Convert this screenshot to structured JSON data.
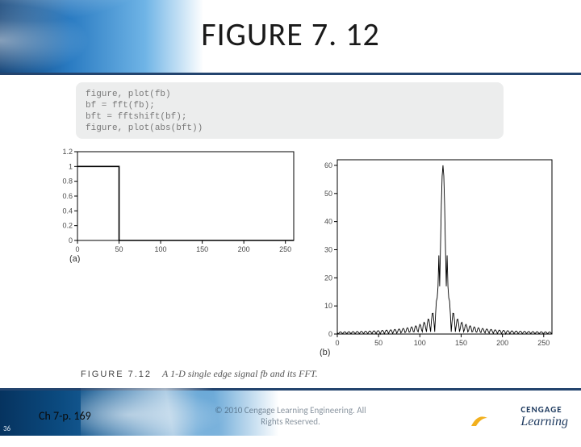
{
  "title": "FIGURE 7. 12",
  "code": {
    "lines": [
      "figure, plot(fb)",
      "bf = fft(fb);",
      "bft = fftshift(bf);",
      "figure, plot(abs(bft))"
    ],
    "bg": "#eceded",
    "text_color": "#7a7a7a",
    "font_size": 11
  },
  "chart_a": {
    "type": "line",
    "label": "(a)",
    "xlim": [
      0,
      260
    ],
    "ylim": [
      0,
      1.2
    ],
    "xticks": [
      0,
      50,
      100,
      150,
      200,
      250
    ],
    "yticks": [
      0,
      0.2,
      0.4,
      0.6,
      0.8,
      1,
      1.2
    ],
    "series": {
      "x": [
        0,
        50,
        50,
        260
      ],
      "y": [
        1,
        1,
        0,
        0
      ]
    },
    "line_color": "#000000",
    "line_width": 1.6,
    "axis_color": "#000000",
    "tick_color": "#4a4a4a",
    "tick_fontsize": 9
  },
  "chart_b": {
    "type": "line",
    "label": "(b)",
    "xlim": [
      0,
      260
    ],
    "ylim": [
      0,
      62
    ],
    "xticks": [
      0,
      50,
      100,
      150,
      200,
      250
    ],
    "yticks": [
      0,
      10,
      20,
      30,
      40,
      50,
      60
    ],
    "line_color": "#000000",
    "line_width": 0.9,
    "axis_color": "#000000",
    "tick_color": "#4a4a4a",
    "tick_fontsize": 9,
    "peak_center": 128,
    "peak_height": 60,
    "side_peak_height": 28
  },
  "caption": {
    "label": "FIGURE 7.12",
    "desc": "A 1-D single edge signal fb and its FFT."
  },
  "footer": {
    "slide_number": "36",
    "chapter_ref": "Ch 7-p. 169",
    "copyright_line1": "© 2010 Cengage Learning Engineering. All",
    "copyright_line2": "Rights Reserved.",
    "brand_top": "CENGAGE",
    "brand_bottom": "Learning"
  },
  "colors": {
    "title_color": "#1a1a1a",
    "rule_color": "#23446e",
    "band_dark": "#0b3d73",
    "band_mid": "#2a7bc2",
    "band_light": "#6fb4e6"
  }
}
